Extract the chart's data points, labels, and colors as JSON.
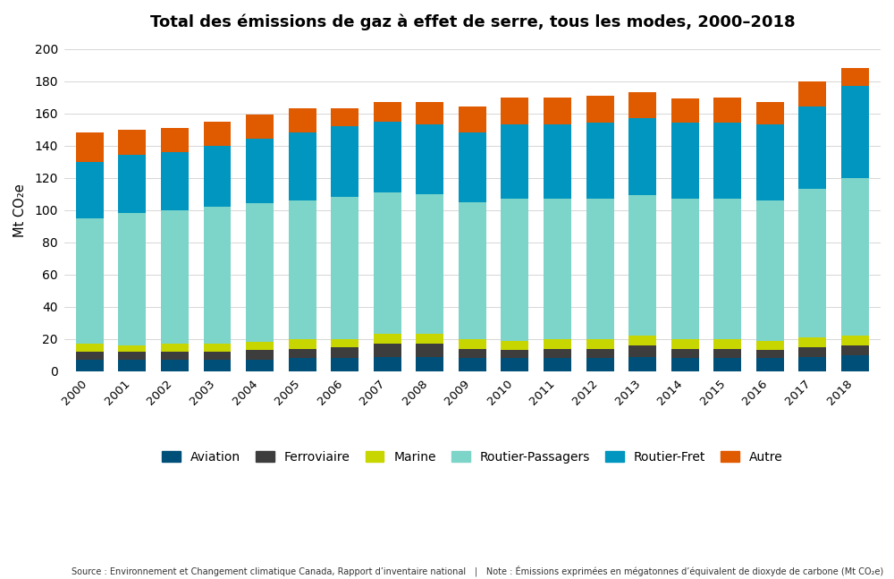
{
  "title": "Total des émissions de gaz à effet de serre, tous les modes, 2000–2018",
  "years": [
    2000,
    2001,
    2002,
    2003,
    2004,
    2005,
    2006,
    2007,
    2008,
    2009,
    2010,
    2011,
    2012,
    2013,
    2014,
    2015,
    2016,
    2017,
    2018
  ],
  "Aviation": [
    7,
    7,
    7,
    7,
    7,
    8,
    8,
    9,
    9,
    8,
    8,
    8,
    8,
    9,
    8,
    8,
    8,
    9,
    10
  ],
  "Ferroviaire": [
    5,
    5,
    5,
    5,
    6,
    6,
    7,
    8,
    8,
    6,
    5,
    6,
    6,
    7,
    6,
    6,
    5,
    6,
    6
  ],
  "Marine": [
    5,
    4,
    5,
    5,
    5,
    6,
    5,
    6,
    6,
    6,
    6,
    6,
    6,
    6,
    6,
    6,
    6,
    6,
    6
  ],
  "Routier_Passagers": [
    78,
    82,
    83,
    85,
    86,
    86,
    88,
    88,
    87,
    85,
    88,
    87,
    87,
    87,
    87,
    87,
    87,
    92,
    98
  ],
  "Routier_Fret": [
    35,
    36,
    36,
    38,
    40,
    42,
    44,
    44,
    43,
    43,
    46,
    46,
    47,
    48,
    47,
    47,
    47,
    51,
    57
  ],
  "Autre": [
    18,
    16,
    15,
    15,
    15,
    15,
    11,
    12,
    14,
    16,
    17,
    17,
    17,
    16,
    15,
    16,
    14,
    16,
    11
  ],
  "colors": {
    "Aviation": "#004f78",
    "Ferroviaire": "#3d3d3d",
    "Marine": "#c8d600",
    "Routier_Passagers": "#7dd4c8",
    "Routier_Fret": "#0096c0",
    "Autre": "#e05a00"
  },
  "legend_labels": [
    "Aviation",
    "Ferroviaire",
    "Marine",
    "Routier-Passagers",
    "Routier-Fret",
    "Autre"
  ],
  "ylabel": "Mt CO₂e",
  "ylim": [
    0,
    200
  ],
  "yticks": [
    0,
    20,
    40,
    60,
    80,
    100,
    120,
    140,
    160,
    180,
    200
  ],
  "source_text": "Source : Environnement et Changement climatique Canada, Rapport d’inventaire national | Note : Émissions exprimées en mégatonnes d’équivalent de dioxyde de carbone (Mt CO₂e)",
  "background_color": "#ffffff",
  "bar_width": 0.65
}
